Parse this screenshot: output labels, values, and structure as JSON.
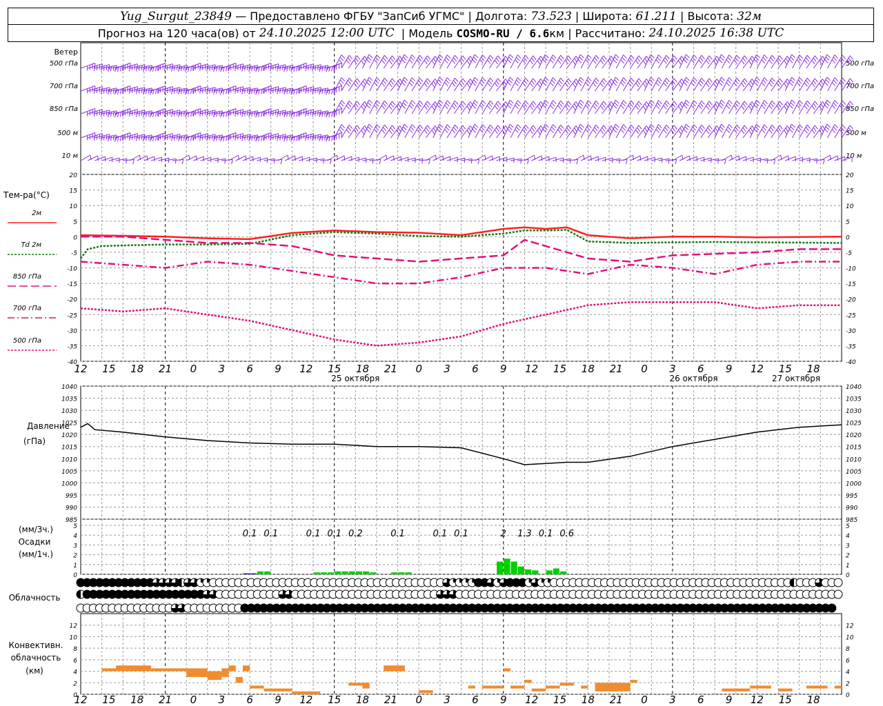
{
  "header": {
    "station": "Yug_Surgut_23849",
    "provided_by": "— Предоставлено ФГБУ \"ЗапСиб УГМС\"",
    "lon_label": "| Долгота:",
    "lon": "73.523",
    "lat_label": "| Широта:",
    "lat": "61.211",
    "alt_label": "| Высота:",
    "alt": "32м",
    "forecast_label": "Прогноз на 120 часа(ов) от",
    "forecast_start": "24.10.2025 12:00 UTC",
    "model_label": "| Модель",
    "model": "COSMO-RU / 6.6",
    "model_unit": "км",
    "calc_label": "| Рассчитано:",
    "calc_time": "24.10.2025 16:38 UTC"
  },
  "wind_panel": {
    "title": "Ветер",
    "levels": [
      "500 гПа",
      "700 гПа",
      "850 гПа",
      "500 м",
      "10 м"
    ],
    "color": "#8a2be2"
  },
  "temp_panel": {
    "title": "Тем-ра(°C)",
    "legend": [
      "2м",
      "Td  2м",
      "850 гПа",
      "700 гПа",
      "500 гПа"
    ],
    "yticks": [
      20,
      15,
      10,
      5,
      0,
      -5,
      -10,
      -15,
      -20,
      -25,
      -30,
      -35,
      -40
    ]
  },
  "pressure_panel": {
    "title": "Давление",
    "unit": "(гПа)",
    "yticks": [
      1040,
      1035,
      1030,
      1025,
      1020,
      1015,
      1010,
      1005,
      1000,
      995,
      990,
      985
    ]
  },
  "precip_panel": {
    "unit_top": "(мм/3ч.)",
    "title": "Осадки",
    "unit_bottom": "(мм/1ч.)",
    "yticks": [
      5,
      4,
      3,
      2,
      1,
      0
    ],
    "totals": [
      {
        "hour": 24,
        "value": "0.1"
      },
      {
        "hour": 27,
        "value": "0.1"
      },
      {
        "hour": 33,
        "value": "0.1"
      },
      {
        "hour": 36,
        "value": "0.1"
      },
      {
        "hour": 39,
        "value": "0.2"
      },
      {
        "hour": 45,
        "value": "0.1"
      },
      {
        "hour": 51,
        "value": "0.1"
      },
      {
        "hour": 54,
        "value": "0.1"
      },
      {
        "hour": 60,
        "value": "2"
      },
      {
        "hour": 63,
        "value": "1.3"
      },
      {
        "hour": 66,
        "value": "0.1"
      },
      {
        "hour": 69,
        "value": "0.6"
      }
    ]
  },
  "cloud_panel": {
    "title": "Облачность"
  },
  "conv_panel": {
    "title_1": "Конвективн.",
    "title_2": "облачность",
    "unit": "(км)",
    "yticks": [
      12,
      10,
      8,
      6,
      4,
      2,
      0
    ]
  },
  "xaxis": {
    "hour_labels": [
      "12",
      "15",
      "18",
      "21",
      "0",
      "3",
      "6",
      "9",
      "12",
      "15",
      "18",
      "21",
      "0",
      "3",
      "6",
      "9",
      "12",
      "15",
      "18",
      "21",
      "0",
      "3",
      "6",
      "9",
      "12",
      "15",
      "18"
    ],
    "dates": [
      "25 октября",
      "26 октября",
      "27 октября"
    ]
  },
  "colors": {
    "t2m": "#ff2020",
    "td2m": "#107810",
    "t850": "#e0107a",
    "t700": "#e0107a",
    "t500": "#e0107a",
    "pressure": "#000000",
    "precip_small": "#1818d0",
    "precip": "#00d000",
    "conv": "#f08c30",
    "wind": "#8a2be2",
    "grid": "#999999"
  },
  "chart_data": [
    {
      "type": "line",
      "title": "Тем-ра(°C)",
      "x_unit": "hours from 24.10.2025 12:00 UTC",
      "ylim": [
        -40,
        20
      ],
      "series": [
        {
          "name": "2м",
          "x": [
            0,
            6,
            12,
            18,
            24,
            30,
            36,
            42,
            48,
            54,
            60,
            63,
            66,
            69,
            72,
            78,
            84,
            90,
            96,
            102,
            108
          ],
          "values": [
            0.5,
            0.3,
            0,
            -0.5,
            -0.8,
            1.2,
            2,
            1.5,
            1.3,
            0.5,
            2.5,
            3,
            2.5,
            3,
            0.5,
            -0.5,
            0,
            0,
            -0.2,
            -0.1,
            0
          ]
        },
        {
          "name": "Td  2м",
          "x": [
            0,
            1,
            3,
            6,
            12,
            18,
            24,
            30,
            36,
            42,
            48,
            54,
            60,
            63,
            66,
            69,
            72,
            78,
            84,
            90,
            96,
            102,
            108
          ],
          "values": [
            -7,
            -4,
            -3,
            -2.8,
            -2.5,
            -2.5,
            -2.3,
            0.5,
            1.5,
            1,
            0.2,
            0,
            1,
            2,
            2,
            2.2,
            -1.5,
            -2,
            -1.8,
            -1.7,
            -1.8,
            -1.9,
            -2
          ]
        },
        {
          "name": "850 гПа",
          "x": [
            0,
            6,
            12,
            15,
            18,
            24,
            30,
            36,
            42,
            48,
            54,
            60,
            63,
            66,
            72,
            78,
            81,
            84,
            90,
            96,
            102,
            108
          ],
          "values": [
            0,
            0,
            -1,
            -1.5,
            -2,
            -2,
            -3,
            -6,
            -7,
            -8,
            -7,
            -6,
            -1,
            -3,
            -7,
            -8,
            -7,
            -6,
            -5.5,
            -5,
            -4,
            -4
          ]
        },
        {
          "name": "700 гПа",
          "x": [
            0,
            6,
            12,
            18,
            24,
            30,
            36,
            42,
            48,
            54,
            60,
            66,
            72,
            78,
            84,
            90,
            96,
            102,
            108
          ],
          "values": [
            -8,
            -9,
            -10,
            -8,
            -9,
            -11,
            -13,
            -15,
            -15,
            -13,
            -10,
            -10,
            -12,
            -9,
            -10,
            -12,
            -9,
            -8,
            -8
          ]
        },
        {
          "name": "500 гПа",
          "x": [
            0,
            6,
            12,
            18,
            24,
            30,
            36,
            42,
            48,
            54,
            60,
            66,
            72,
            78,
            84,
            90,
            96,
            102,
            108
          ],
          "values": [
            -23,
            -24,
            -23,
            -25,
            -27,
            -30,
            -33,
            -35,
            -34,
            -32,
            -28,
            -25,
            -22,
            -21,
            -21,
            -21,
            -23,
            -22,
            -22
          ]
        }
      ]
    },
    {
      "type": "line",
      "title": "Давление",
      "ylabel": "(гПа)",
      "ylim": [
        985,
        1040
      ],
      "series": [
        {
          "name": "Давление",
          "x": [
            0,
            1,
            2,
            6,
            12,
            18,
            24,
            30,
            36,
            42,
            48,
            54,
            60,
            63,
            66,
            69,
            72,
            78,
            84,
            90,
            96,
            102,
            108
          ],
          "values": [
            1023,
            1024.5,
            1022,
            1021,
            1019,
            1017.5,
            1016.5,
            1016,
            1016,
            1015,
            1015,
            1014.5,
            1010,
            1007.5,
            1008,
            1008.5,
            1008.5,
            1011,
            1015,
            1018,
            1021,
            1023,
            1024
          ]
        }
      ]
    },
    {
      "type": "bar",
      "title": "Осадки",
      "ylabel": "(мм/1ч.)",
      "ylim": [
        0,
        5
      ],
      "x": [
        13,
        14,
        15,
        16,
        17,
        18,
        19,
        20,
        21,
        22,
        23,
        24,
        25,
        26,
        27,
        28,
        29,
        30,
        31,
        32,
        33,
        34,
        35,
        36,
        37,
        38,
        39,
        40,
        41,
        42,
        43,
        44,
        45,
        46,
        47,
        48,
        49,
        50,
        51,
        52,
        53,
        54,
        55,
        56,
        57,
        58,
        59,
        60,
        61,
        62,
        63,
        64,
        65,
        66,
        67,
        68,
        69,
        70,
        71,
        72,
        73,
        74,
        75,
        76,
        77,
        78,
        79,
        80
      ],
      "values": [
        0,
        0,
        0,
        0,
        0,
        0,
        0,
        0,
        0,
        0,
        0,
        0.1,
        0.1,
        0.3,
        0.3,
        0,
        0,
        0,
        0,
        0,
        0,
        0.2,
        0.2,
        0.2,
        0.3,
        0.3,
        0.3,
        0.3,
        0.3,
        0.2,
        0,
        0,
        0.2,
        0.2,
        0.2,
        0,
        0,
        0,
        0,
        0,
        0,
        0,
        0,
        0,
        0,
        0,
        0,
        1.3,
        1.6,
        1.3,
        0.8,
        0.5,
        0.4,
        0,
        0.4,
        0.6,
        0.3,
        0,
        0,
        0,
        0,
        0,
        0,
        0,
        0,
        0,
        0,
        0
      ]
    },
    {
      "type": "bar",
      "title": "Конвективн. облачность",
      "ylabel": "(км)",
      "ylim": [
        0,
        14
      ],
      "segments": [
        {
          "x0": 3,
          "x1": 5,
          "bottom": 4,
          "top": 4.5
        },
        {
          "x0": 5,
          "x1": 10,
          "bottom": 4,
          "top": 5
        },
        {
          "x0": 10,
          "x1": 15,
          "bottom": 4,
          "top": 4.5
        },
        {
          "x0": 15,
          "x1": 18,
          "bottom": 3,
          "top": 4.5
        },
        {
          "x0": 18,
          "x1": 20,
          "bottom": 2.5,
          "top": 4
        },
        {
          "x0": 20,
          "x1": 21,
          "bottom": 3,
          "top": 4.5
        },
        {
          "x0": 21,
          "x1": 22,
          "bottom": 4,
          "top": 5
        },
        {
          "x0": 22,
          "x1": 23,
          "bottom": 2,
          "top": 3
        },
        {
          "x0": 23,
          "x1": 24,
          "bottom": 4,
          "top": 5
        },
        {
          "x0": 24,
          "x1": 26,
          "bottom": 1,
          "top": 1.5
        },
        {
          "x0": 26,
          "x1": 30,
          "bottom": 0.5,
          "top": 1
        },
        {
          "x0": 30,
          "x1": 32,
          "bottom": 0,
          "top": 0.5
        },
        {
          "x0": 32,
          "x1": 34,
          "bottom": 0,
          "top": 0.5
        },
        {
          "x0": 38,
          "x1": 40,
          "bottom": 1.5,
          "top": 2
        },
        {
          "x0": 40,
          "x1": 41,
          "bottom": 1,
          "top": 2
        },
        {
          "x0": 43,
          "x1": 46,
          "bottom": 4,
          "top": 5
        },
        {
          "x0": 48,
          "x1": 50,
          "bottom": 0.2,
          "top": 0.7
        },
        {
          "x0": 55,
          "x1": 56,
          "bottom": 1,
          "top": 1.5
        },
        {
          "x0": 57,
          "x1": 60,
          "bottom": 1,
          "top": 1.5
        },
        {
          "x0": 60,
          "x1": 61,
          "bottom": 4,
          "top": 4.5
        },
        {
          "x0": 61,
          "x1": 63,
          "bottom": 1,
          "top": 1.5
        },
        {
          "x0": 63,
          "x1": 64,
          "bottom": 2,
          "top": 2.5
        },
        {
          "x0": 64,
          "x1": 66,
          "bottom": 0.5,
          "top": 1
        },
        {
          "x0": 66,
          "x1": 68,
          "bottom": 1,
          "top": 1.5
        },
        {
          "x0": 68,
          "x1": 70,
          "bottom": 1.5,
          "top": 2
        },
        {
          "x0": 71,
          "x1": 72,
          "bottom": 1,
          "top": 1.5
        },
        {
          "x0": 73,
          "x1": 78,
          "bottom": 0.5,
          "top": 2
        },
        {
          "x0": 78,
          "x1": 79,
          "bottom": 2,
          "top": 2.5
        },
        {
          "x0": 91,
          "x1": 95,
          "bottom": 0.5,
          "top": 1
        },
        {
          "x0": 95,
          "x1": 98,
          "bottom": 1,
          "top": 1.5
        },
        {
          "x0": 99,
          "x1": 101,
          "bottom": 0.5,
          "top": 1
        },
        {
          "x0": 103,
          "x1": 106,
          "bottom": 1,
          "top": 1.5
        },
        {
          "x0": 107,
          "x1": 108,
          "bottom": 1,
          "top": 1.5
        }
      ]
    },
    {
      "type": "table",
      "title": "Облачность",
      "rows": [
        "ffffffffffff3333h3311000000000000000000000000000000000000031111ff313fff131100000000000000000000000000000000000000h0003000",
        "hfffffffffffffffffff33000000000033000000000000000000000003330000000000000000000000000000000000000000000000000000000000000",
        "00000000000000033000000000ffffffffffffffffffffffffffffffffffffffffffffffffffffffffffffffffffffffffffffffffffffffffffffff"
      ],
      "coding": "0 = clear, 1 = quarter, h = half, 3 = three-quarter, f = overcast"
    }
  ]
}
